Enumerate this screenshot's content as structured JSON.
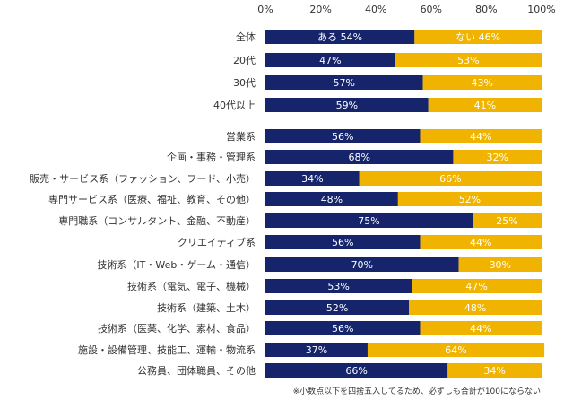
{
  "chart_data": {
    "type": "bar",
    "orientation": "horizontal",
    "stacked": true,
    "xlim": [
      0,
      100
    ],
    "tick_labels": [
      "0%",
      "20%",
      "40%",
      "60%",
      "80%",
      "100%"
    ],
    "categories": [
      "全体",
      "20代",
      "30代",
      "40代以上",
      "営業系",
      "企画・事務・管理系",
      "販売・サービス系（ファッション、フード、小売）",
      "専門サービス系（医療、福祉、教育、その他）",
      "専門職系（コンサルタント、金融、不動産）",
      "クリエイティブ系",
      "技術系（IT・Web・ゲーム・通信）",
      "技術系（電気、電子、機械）",
      "技術系（建築、土木）",
      "技術系（医薬、化学、素材、食品）",
      "施設・設備管理、技能工、運輸・物流系",
      "公務員、団体職員、その他"
    ],
    "series": [
      {
        "name": "ある",
        "color": "#15246b",
        "values": [
          54,
          47,
          57,
          59,
          56,
          68,
          34,
          48,
          75,
          56,
          70,
          53,
          52,
          56,
          37,
          66
        ]
      },
      {
        "name": "ない",
        "color": "#f0b400",
        "values": [
          46,
          53,
          43,
          41,
          44,
          32,
          66,
          52,
          25,
          44,
          30,
          47,
          48,
          44,
          64,
          34
        ]
      }
    ],
    "first_row_labels": [
      "ある 54%",
      "ない 46%"
    ],
    "gridlines": false
  },
  "footnote": "※小数点以下を四捨五入してるため、必ずしも合計が100にならない"
}
